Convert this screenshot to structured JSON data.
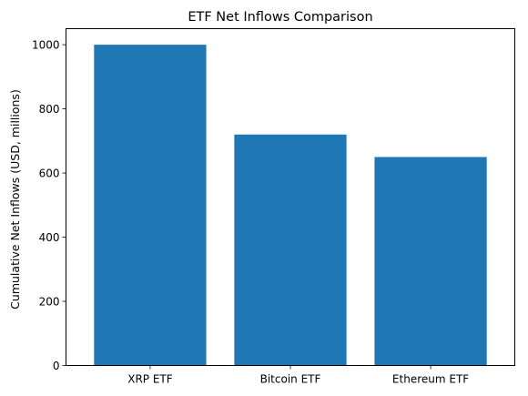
{
  "chart_data": {
    "type": "bar",
    "title": "ETF Net Inflows Comparison",
    "xlabel": "",
    "ylabel": "Cumulative Net Inflows (USD, millions)",
    "categories": [
      "XRP ETF",
      "Bitcoin ETF",
      "Ethereum ETF"
    ],
    "values": [
      1000,
      720,
      650
    ],
    "ylim": [
      0,
      1050
    ],
    "yticks": [
      0,
      200,
      400,
      600,
      800,
      1000
    ],
    "grid": false,
    "legend": "none",
    "bar_color": "#1f77b4"
  }
}
